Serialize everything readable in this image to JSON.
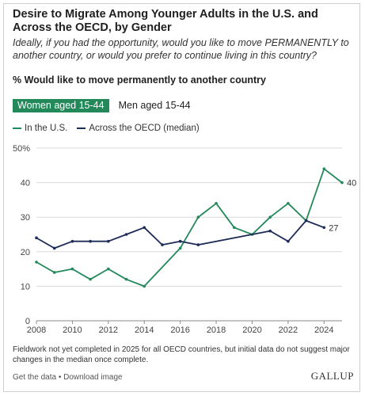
{
  "title": "Desire to Migrate Among Younger Adults in the U.S. and Across the OECD, by Gender",
  "subtitle": "Ideally, if you had the opportunity, would you like to move PERMANENTLY to another country, or would you prefer to continue living in this country?",
  "measure": "% Would like to move permanently to another country",
  "tabs": [
    {
      "label": "Women aged 15-44",
      "active": true
    },
    {
      "label": "Men aged 15-44",
      "active": false
    }
  ],
  "colors": {
    "us": "#23895a",
    "oecd": "#1d2b57",
    "grid": "#d9d9d9",
    "tab_active": "#23895a"
  },
  "footnote": "Fieldwork not yet completed in 2025 for all OECD countries, but initial data do not suggest major changes in the median once complete.",
  "links": {
    "get_data": "Get the data",
    "separator": " • ",
    "download": "Download image"
  },
  "logo": "GALLUP",
  "chart_data": {
    "type": "line",
    "xlabel": "",
    "ylabel": "",
    "xlim": [
      2008,
      2025
    ],
    "ylim": [
      0,
      50
    ],
    "x_ticks": [
      "2008",
      "2010",
      "2012",
      "2014",
      "2016",
      "2018",
      "2020",
      "2022",
      "2024"
    ],
    "y_ticks": [
      "0",
      "10",
      "20",
      "30",
      "40",
      "50%"
    ],
    "grid": true,
    "legend_position": "top-left",
    "series": [
      {
        "name": "In the U.S.",
        "color": "#23895a",
        "end_label": "40",
        "x": [
          2008,
          2009,
          2010,
          2011,
          2012,
          2013,
          2014,
          2016,
          2017,
          2018,
          2019,
          2020,
          2021,
          2022,
          2023,
          2024,
          2025
        ],
        "y": [
          17,
          14,
          15,
          12,
          15,
          12,
          10,
          21,
          30,
          34,
          27,
          25,
          30,
          34,
          29,
          44,
          40
        ]
      },
      {
        "name": "Across the OECD (median)",
        "color": "#1d2b57",
        "end_label": "27",
        "x": [
          2008,
          2009,
          2010,
          2011,
          2012,
          2013,
          2014,
          2015,
          2016,
          2017,
          2021,
          2022,
          2023,
          2024
        ],
        "y": [
          24,
          21,
          23,
          23,
          23,
          25,
          27,
          22,
          23,
          22,
          26,
          23,
          29,
          27
        ]
      }
    ]
  }
}
